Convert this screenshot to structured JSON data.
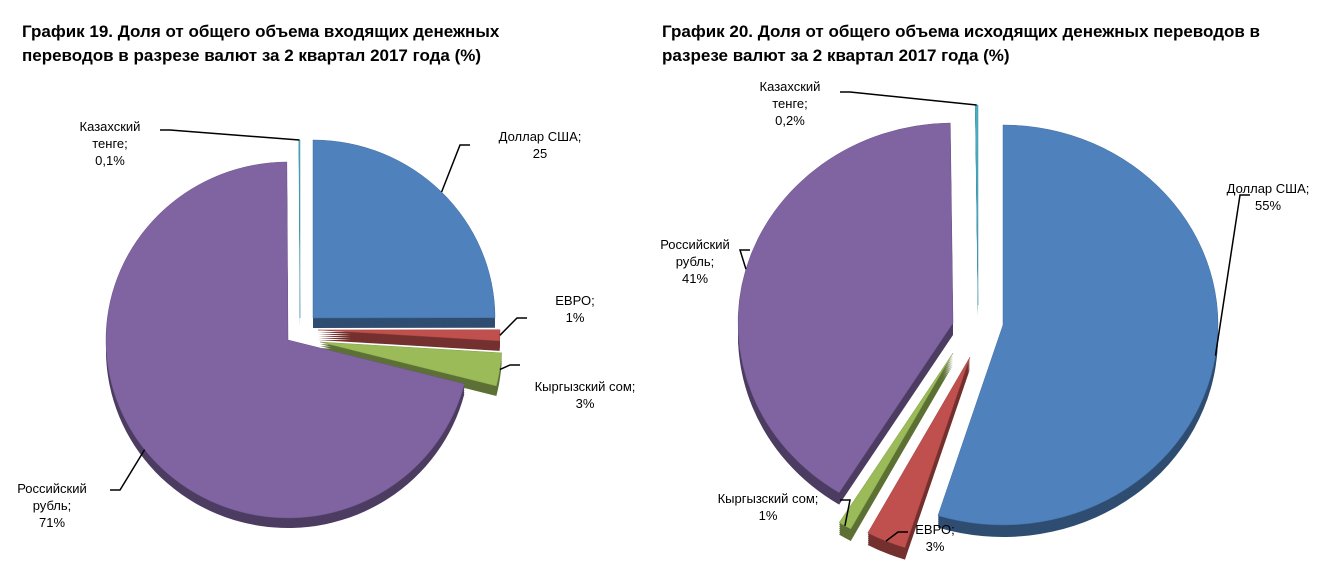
{
  "chart_data": [
    {
      "type": "pie",
      "title": "График 19. Доля от общего объема входящих денежных переводов в разрезе валют за 2 квартал  2017 года (%)",
      "categories": [
        "Доллар США;",
        "ЕВРО;",
        "Кыргызский сом;",
        "Российский рубль;",
        "Казахский тенге;"
      ],
      "values": [
        25,
        1,
        3,
        71,
        0.1
      ],
      "value_labels": [
        "25",
        "1%",
        "3%",
        "71%",
        "0,1%"
      ],
      "colors": [
        "#4f81bd",
        "#c0504d",
        "#9bbb59",
        "#8064a2",
        "#4bacc6"
      ]
    },
    {
      "type": "pie",
      "title": "График 20. Доля от общего объема исходящих денежных переводов в разрезе валют за 2 квартал  2017 года (%)",
      "categories": [
        "Доллар США;",
        "ЕВРО;",
        "Кыргызский сом;",
        "Российский рубль;",
        "Казахский тенге;"
      ],
      "values": [
        55,
        3,
        1,
        41,
        0.2
      ],
      "value_labels": [
        "55%",
        "3%",
        "1%",
        "41%",
        "0,2%"
      ],
      "colors": [
        "#4f81bd",
        "#c0504d",
        "#9bbb59",
        "#8064a2",
        "#4bacc6"
      ]
    }
  ]
}
